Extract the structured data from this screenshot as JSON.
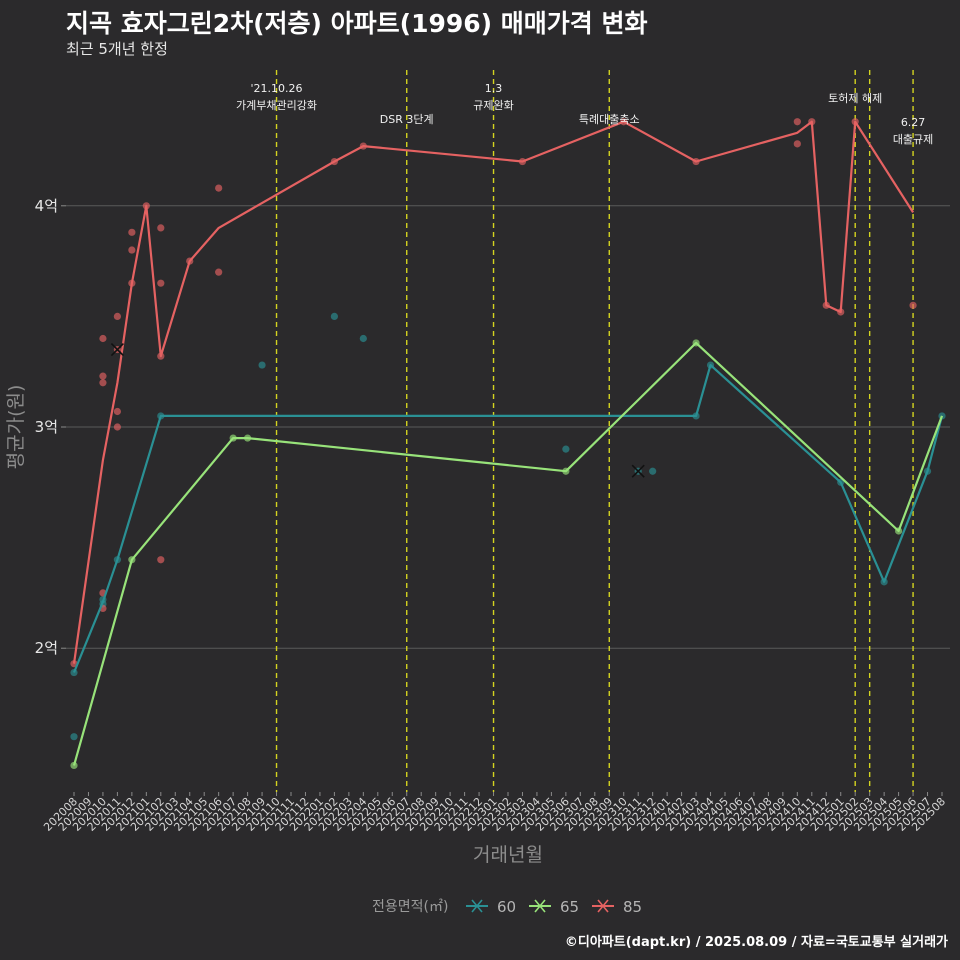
{
  "title": "지곡 효자그린2차(저층) 아파트(1996) 매매가격 변화",
  "subtitle": "최근 5개년 한정",
  "caption": "©디아파트(dapt.kr) / 2025.08.09 / 자료=국토교통부 실거래가",
  "chart_data": {
    "type": "line",
    "xlabel": "거래년월",
    "ylabel": "평균가(원)",
    "ylim": [
      1.35,
      4.65
    ],
    "yticks": [
      {
        "value": 2,
        "label": "2억"
      },
      {
        "value": 3,
        "label": "3억"
      },
      {
        "value": 4,
        "label": "4억"
      }
    ],
    "x_categories": [
      "202008",
      "202009",
      "202010",
      "202011",
      "202012",
      "202101",
      "202102",
      "202103",
      "202104",
      "202105",
      "202106",
      "202107",
      "202108",
      "202109",
      "202110",
      "202111",
      "202112",
      "202201",
      "202202",
      "202203",
      "202204",
      "202205",
      "202206",
      "202207",
      "202208",
      "202209",
      "202210",
      "202211",
      "202212",
      "202301",
      "202302",
      "202303",
      "202304",
      "202305",
      "202306",
      "202307",
      "202308",
      "202309",
      "202310",
      "202311",
      "202312",
      "202401",
      "202402",
      "202403",
      "202404",
      "202405",
      "202406",
      "202407",
      "202408",
      "202409",
      "202410",
      "202411",
      "202412",
      "202501",
      "202502",
      "202503",
      "202504",
      "202505",
      "202506",
      "202507",
      "202508"
    ],
    "legend": {
      "title": "전용면적(㎡)",
      "position": "bottom"
    },
    "annotations": [
      {
        "x": 14.0,
        "lines": [
          "'21.10.26",
          "가계부채관리강화"
        ],
        "level": 0
      },
      {
        "x": 23.0,
        "lines": [
          "DSR 3단계"
        ],
        "level": 1
      },
      {
        "x": 29.0,
        "lines": [
          "1.3",
          "규제완화"
        ],
        "level": 0
      },
      {
        "x": 37.0,
        "lines": [
          "특례대출축소"
        ],
        "level": 1
      },
      {
        "x": 54.0,
        "lines": [
          "토허제 해제"
        ],
        "level": 2
      },
      {
        "x": 55.0,
        "lines": [],
        "level": 2
      },
      {
        "x": 58.0,
        "lines": [
          "6.27",
          "대출규제"
        ],
        "level": 3
      }
    ],
    "series": [
      {
        "name": "60",
        "color": "#2a9094",
        "line": [
          [
            0,
            1.89
          ],
          [
            2,
            2.21
          ],
          [
            3,
            2.4
          ],
          [
            6,
            3.05
          ],
          [
            43,
            3.05
          ],
          [
            44,
            3.28
          ],
          [
            53,
            2.75
          ],
          [
            56,
            2.3
          ],
          [
            59,
            2.8
          ],
          [
            60,
            3.05
          ]
        ],
        "points": [
          [
            0,
            1.89
          ],
          [
            0,
            1.6
          ],
          [
            2,
            2.2
          ],
          [
            2,
            2.22
          ],
          [
            3,
            2.4
          ],
          [
            6,
            3.05
          ],
          [
            13,
            3.28
          ],
          [
            18,
            3.5
          ],
          [
            20,
            3.4
          ],
          [
            34,
            2.9
          ],
          [
            39,
            2.8
          ],
          [
            40,
            2.8
          ],
          [
            43,
            3.05
          ],
          [
            44,
            3.28
          ],
          [
            53,
            2.75
          ],
          [
            56,
            2.3
          ],
          [
            59,
            2.8
          ],
          [
            60,
            3.05
          ]
        ],
        "crosses": [
          [
            39,
            2.8
          ]
        ]
      },
      {
        "name": "65",
        "color": "#98e37a",
        "line": [
          [
            0,
            1.47
          ],
          [
            4,
            2.4
          ],
          [
            11,
            2.95
          ],
          [
            12,
            2.95
          ],
          [
            34,
            2.8
          ],
          [
            43,
            3.38
          ],
          [
            57,
            2.53
          ],
          [
            60,
            3.05
          ]
        ],
        "points": [
          [
            0,
            1.47
          ],
          [
            4,
            2.4
          ],
          [
            11,
            2.95
          ],
          [
            12,
            2.95
          ],
          [
            34,
            2.8
          ],
          [
            43,
            3.38
          ],
          [
            57,
            2.53
          ]
        ],
        "crosses": []
      },
      {
        "name": "85",
        "color": "#e56262",
        "line": [
          [
            0,
            1.93
          ],
          [
            2,
            2.85
          ],
          [
            3,
            3.2
          ],
          [
            4,
            3.65
          ],
          [
            5,
            4.0
          ],
          [
            6,
            3.32
          ],
          [
            8,
            3.75
          ],
          [
            10,
            3.9
          ],
          [
            18,
            4.2
          ],
          [
            20,
            4.27
          ],
          [
            31,
            4.2
          ],
          [
            38,
            4.38
          ],
          [
            43,
            4.2
          ],
          [
            50,
            4.33
          ],
          [
            51,
            4.38
          ],
          [
            52,
            3.55
          ],
          [
            53,
            3.52
          ],
          [
            54,
            4.38
          ],
          [
            58,
            3.97
          ]
        ],
        "points": [
          [
            0,
            1.93
          ],
          [
            2,
            3.4
          ],
          [
            2,
            3.23
          ],
          [
            2,
            3.2
          ],
          [
            2,
            2.25
          ],
          [
            2,
            2.18
          ],
          [
            3,
            3.5
          ],
          [
            3,
            3.07
          ],
          [
            3,
            3.0
          ],
          [
            3,
            3.35
          ],
          [
            4,
            3.88
          ],
          [
            4,
            3.8
          ],
          [
            4,
            3.65
          ],
          [
            5,
            4.0
          ],
          [
            6,
            3.9
          ],
          [
            6,
            3.65
          ],
          [
            6,
            2.4
          ],
          [
            6,
            3.32
          ],
          [
            8,
            3.75
          ],
          [
            10,
            4.08
          ],
          [
            10,
            3.7
          ],
          [
            18,
            4.2
          ],
          [
            20,
            4.27
          ],
          [
            31,
            4.2
          ],
          [
            38,
            4.38
          ],
          [
            43,
            4.2
          ],
          [
            50,
            4.38
          ],
          [
            50,
            4.28
          ],
          [
            51,
            4.38
          ],
          [
            52,
            3.55
          ],
          [
            53,
            3.52
          ],
          [
            54,
            4.38
          ],
          [
            58,
            3.55
          ]
        ],
        "crosses": [
          [
            3,
            3.35
          ]
        ]
      }
    ]
  }
}
